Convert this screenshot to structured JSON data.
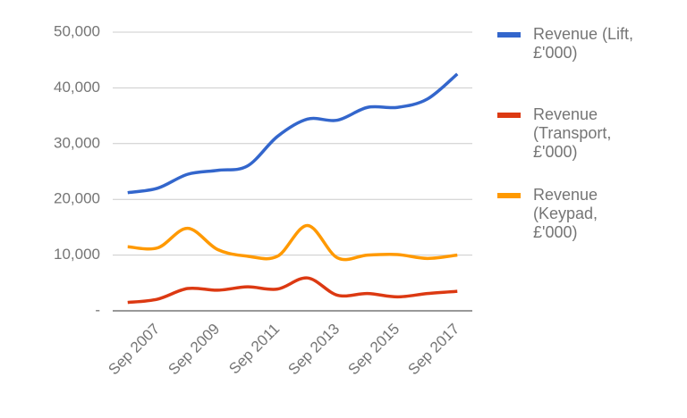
{
  "chart_data": {
    "type": "line",
    "categories": [
      null,
      "Sep 2007",
      null,
      "Sep 2009",
      null,
      "Sep 2011",
      null,
      "Sep 2013",
      null,
      "Sep 2015",
      null,
      "Sep 2017"
    ],
    "series": [
      {
        "name": "Revenue (Lift, £'000)",
        "color": "#3366cc",
        "values": [
          21200,
          22000,
          24500,
          25200,
          26000,
          31300,
          34400,
          34200,
          36500,
          36500,
          38000,
          42500
        ]
      },
      {
        "name": "Revenue (Transport, £'000)",
        "color": "#dc3912",
        "values": [
          1500,
          2100,
          4000,
          3700,
          4300,
          3900,
          5900,
          2800,
          3100,
          2500,
          3100,
          3500
        ]
      },
      {
        "name": "Revenue (Keypad, £'000)",
        "color": "#ff9900",
        "values": [
          11500,
          11300,
          14800,
          11000,
          9800,
          9800,
          15300,
          9500,
          10000,
          10100,
          9400,
          10000
        ]
      }
    ],
    "ylim": [
      0,
      50000
    ],
    "yticks": [
      {
        "value": 0,
        "label": "-"
      },
      {
        "value": 10000,
        "label": "10,000"
      },
      {
        "value": 20000,
        "label": "20,000"
      },
      {
        "value": 30000,
        "label": "30,000"
      },
      {
        "value": 40000,
        "label": "40,000"
      },
      {
        "value": 50000,
        "label": "50,000"
      }
    ],
    "grid": true,
    "legend": "right"
  }
}
